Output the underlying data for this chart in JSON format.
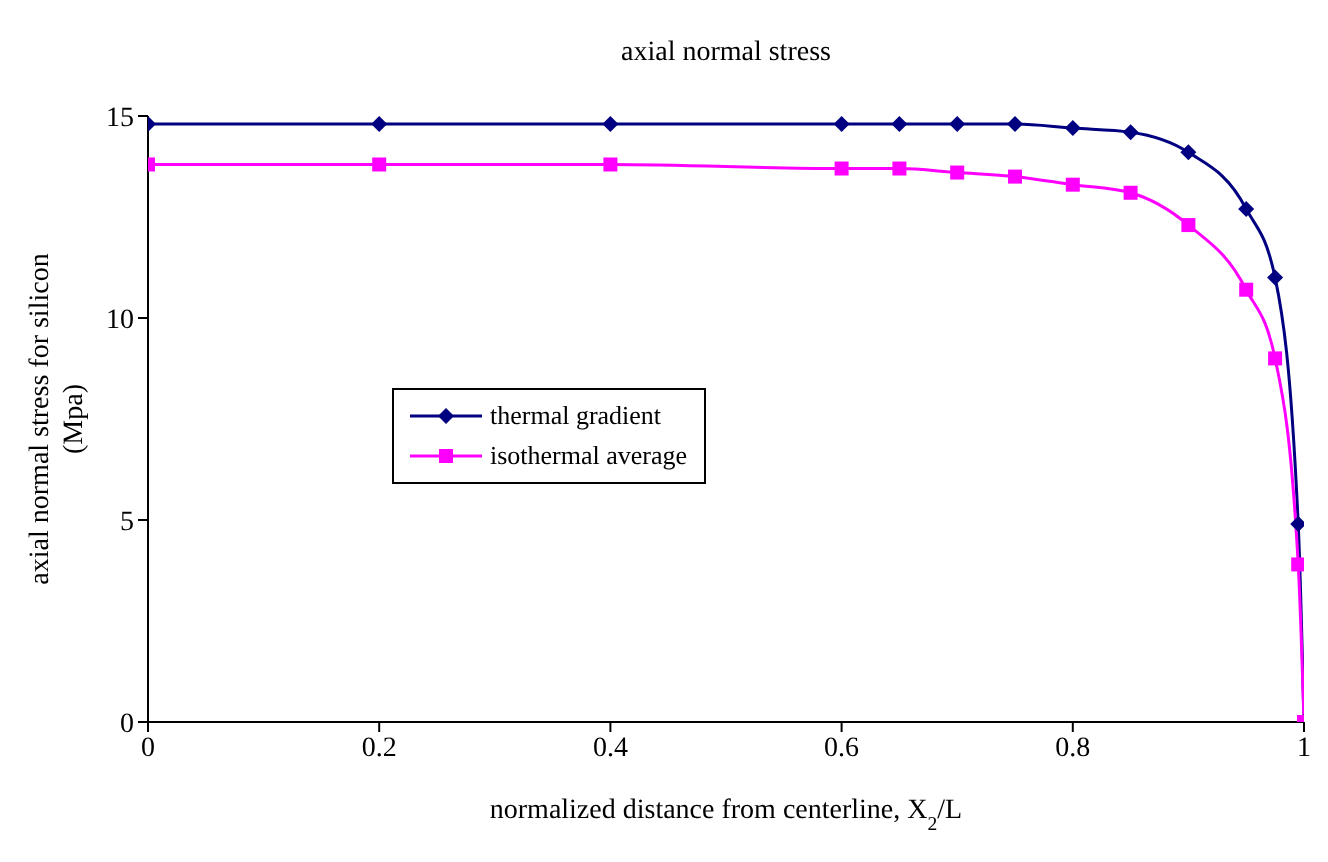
{
  "chart_data": {
    "type": "line",
    "title": "axial normal stress",
    "xlabel": "normalized distance from centerline, X$_{2}$/L",
    "ylabel": "axial normal stress for silicon\n(Mpa)",
    "x": [
      0,
      0.2,
      0.4,
      0.6,
      0.65,
      0.7,
      0.75,
      0.8,
      0.85,
      0.9,
      0.95,
      0.975,
      0.995,
      1
    ],
    "series": [
      {
        "name": "thermal gradient",
        "color": "#000080",
        "marker": "diamond",
        "values": [
          14.8,
          14.8,
          14.8,
          14.8,
          14.8,
          14.8,
          14.8,
          14.7,
          14.6,
          14.1,
          12.7,
          11.0,
          4.9,
          0
        ]
      },
      {
        "name": "isothermal average",
        "color": "#ff00ff",
        "marker": "square",
        "values": [
          13.8,
          13.8,
          13.8,
          13.7,
          13.7,
          13.6,
          13.5,
          13.3,
          13.1,
          12.3,
          10.7,
          9.0,
          3.9,
          0
        ]
      }
    ],
    "xlim": [
      0,
      1
    ],
    "xticks": [
      0,
      0.2,
      0.4,
      0.6,
      0.8,
      1
    ],
    "ylim": [
      0,
      15
    ],
    "yticks": [
      0,
      5,
      10,
      15
    ],
    "grid": false,
    "legend": "center left",
    "line_style": "solid"
  }
}
